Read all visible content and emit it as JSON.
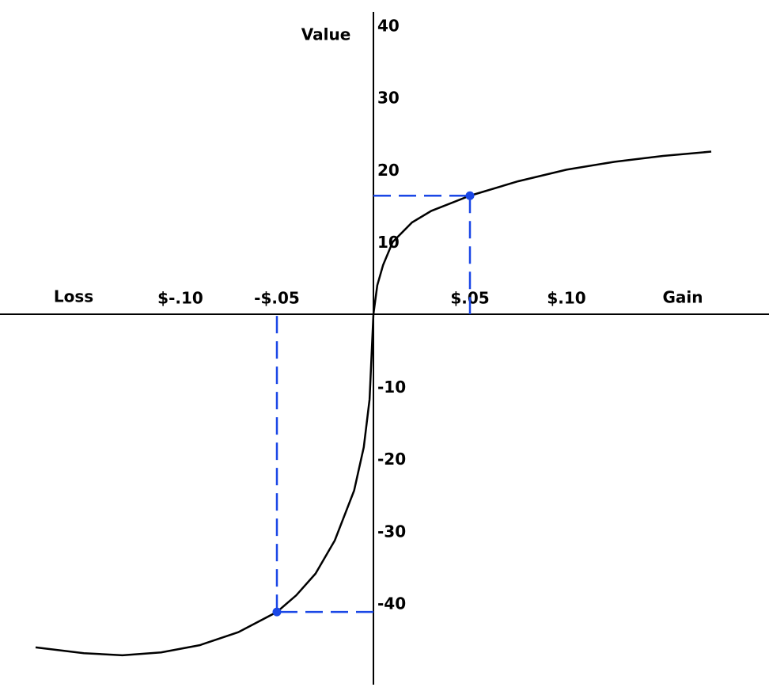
{
  "chart_data": {
    "type": "line",
    "ylabel": "Value",
    "x_label_left": "Loss",
    "x_label_right": "Gain",
    "x": [
      -0.175,
      -0.15,
      -0.13,
      -0.11,
      -0.09,
      -0.07,
      -0.05,
      -0.04,
      -0.03,
      -0.02,
      -0.01,
      -0.005,
      -0.002,
      0,
      0.002,
      0.005,
      0.01,
      0.02,
      0.03,
      0.05,
      0.075,
      0.1,
      0.125,
      0.15,
      0.175
    ],
    "values": [
      -46.1,
      -46.9,
      -47.2,
      -46.8,
      -45.8,
      -44.0,
      -41.2,
      -38.9,
      -35.9,
      -31.3,
      -24.4,
      -18.4,
      -11.8,
      0,
      4,
      6.8,
      10,
      12.7,
      14.3,
      16.4,
      18.4,
      20.0,
      21.1,
      21.9,
      22.5
    ],
    "color": "#000000",
    "highlight_points": {
      "x": [
        0.05,
        -0.05
      ],
      "values": [
        16.4,
        -41.2
      ],
      "color": "#1a47e6"
    },
    "xlim": [
      -0.2,
      0.2
    ],
    "ylim": [
      -50,
      42
    ],
    "xticks": [
      {
        "value": -0.1,
        "label": "$-.10"
      },
      {
        "value": -0.05,
        "label": "-$.05"
      },
      {
        "value": 0.05,
        "label": "$.05"
      },
      {
        "value": 0.1,
        "label": "$.10"
      }
    ],
    "yticks": [
      40,
      30,
      20,
      10,
      -10,
      -20,
      -30,
      -40
    ],
    "grid": false
  }
}
